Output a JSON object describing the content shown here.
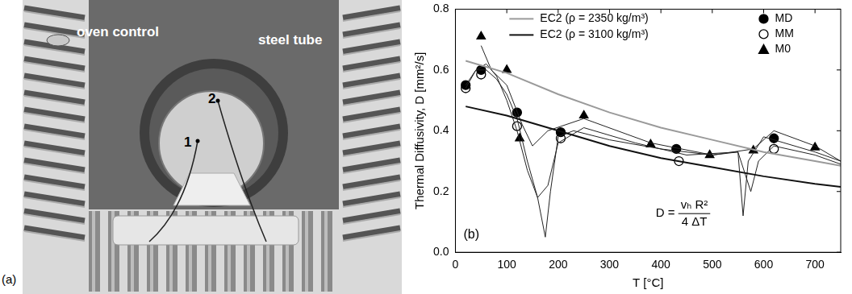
{
  "photo": {
    "panel_label": "(a)",
    "labels": [
      "oven control",
      "steel tube"
    ],
    "points": [
      "1",
      "2"
    ]
  },
  "chart_data": {
    "type": "line",
    "panel_label": "(b)",
    "x_label": "T [°C]",
    "y_label": "Thermal Diffusivity, D [mm²/s]",
    "annotation": {
      "lhs": "D =",
      "numerator": "vₕ R²",
      "denominator": "4 ΔT"
    },
    "xlim": [
      0,
      750
    ],
    "xticks": [
      0,
      100,
      200,
      300,
      400,
      500,
      600,
      700
    ],
    "ylim": [
      0,
      0.8
    ],
    "yticks": [
      {
        "value": 0,
        "label": "0.0"
      },
      0.2,
      0.4,
      0.6,
      0.8
    ],
    "grid": false,
    "legend": "upper right",
    "series": [
      {
        "name": "EC2 (ρ = 2350 kg/m³)",
        "type": "line",
        "color": "#9a9a9a",
        "marker": "none",
        "line_style": "solid",
        "x": [
          20,
          100,
          200,
          300,
          400,
          500,
          600,
          700,
          750
        ],
        "values": [
          0.63,
          0.59,
          0.52,
          0.46,
          0.41,
          0.37,
          0.33,
          0.3,
          0.285
        ]
      },
      {
        "name": "EC2 (ρ = 3100 kg/m³)",
        "type": "line",
        "color": "#111111",
        "marker": "none",
        "line_style": "solid",
        "x": [
          20,
          100,
          200,
          300,
          400,
          500,
          600,
          700,
          750
        ],
        "values": [
          0.48,
          0.45,
          0.4,
          0.35,
          0.31,
          0.28,
          0.25,
          0.225,
          0.215
        ]
      },
      {
        "type": "line",
        "color": "#222222",
        "marker": "none",
        "line_style": "thin",
        "x": [
          20,
          40,
          60,
          80,
          100,
          120,
          140,
          160,
          175,
          185,
          200,
          230,
          300,
          400,
          500,
          550,
          560,
          570,
          600,
          640,
          700,
          750
        ],
        "values": [
          0.55,
          0.6,
          0.6,
          0.57,
          0.52,
          0.44,
          0.3,
          0.18,
          0.05,
          0.2,
          0.38,
          0.4,
          0.37,
          0.34,
          0.32,
          0.33,
          0.12,
          0.3,
          0.38,
          0.36,
          0.33,
          0.3
        ]
      },
      {
        "type": "line",
        "color": "#222222",
        "marker": "none",
        "line_style": "thin",
        "x": [
          20,
          40,
          60,
          80,
          100,
          120,
          140,
          160,
          180,
          200,
          250,
          350,
          450,
          550,
          575,
          590,
          620,
          700,
          750
        ],
        "values": [
          0.54,
          0.6,
          0.62,
          0.58,
          0.5,
          0.4,
          0.27,
          0.18,
          0.22,
          0.36,
          0.41,
          0.36,
          0.32,
          0.33,
          0.2,
          0.3,
          0.35,
          0.32,
          0.29
        ]
      },
      {
        "type": "line",
        "color": "#222222",
        "marker": "none",
        "line_style": "thin",
        "x": [
          50,
          70,
          100,
          130,
          150,
          180,
          250,
          380,
          500,
          580,
          620,
          700,
          750
        ],
        "values": [
          0.68,
          0.6,
          0.55,
          0.42,
          0.35,
          0.4,
          0.44,
          0.36,
          0.32,
          0.34,
          0.4,
          0.35,
          0.3
        ]
      },
      {
        "name": "MD",
        "type": "scatter",
        "color": "#000000",
        "marker": "circle",
        "line_style": "none",
        "x": [
          20,
          50,
          120,
          205,
          430,
          620
        ],
        "values": [
          0.55,
          0.6,
          0.46,
          0.395,
          0.34,
          0.375
        ]
      },
      {
        "name": "MM",
        "type": "scatter",
        "color": "#000000",
        "marker": "open_circle",
        "line_style": "none",
        "x": [
          20,
          50,
          120,
          205,
          435,
          620
        ],
        "values": [
          0.54,
          0.585,
          0.415,
          0.375,
          0.3,
          0.34
        ]
      },
      {
        "name": "M0",
        "type": "scatter",
        "color": "#000000",
        "marker": "triangle",
        "line_style": "none",
        "x": [
          50,
          100,
          125,
          250,
          380,
          495,
          580,
          700
        ],
        "values": [
          0.71,
          0.6,
          0.375,
          0.45,
          0.355,
          0.32,
          0.335,
          0.345
        ]
      }
    ]
  }
}
